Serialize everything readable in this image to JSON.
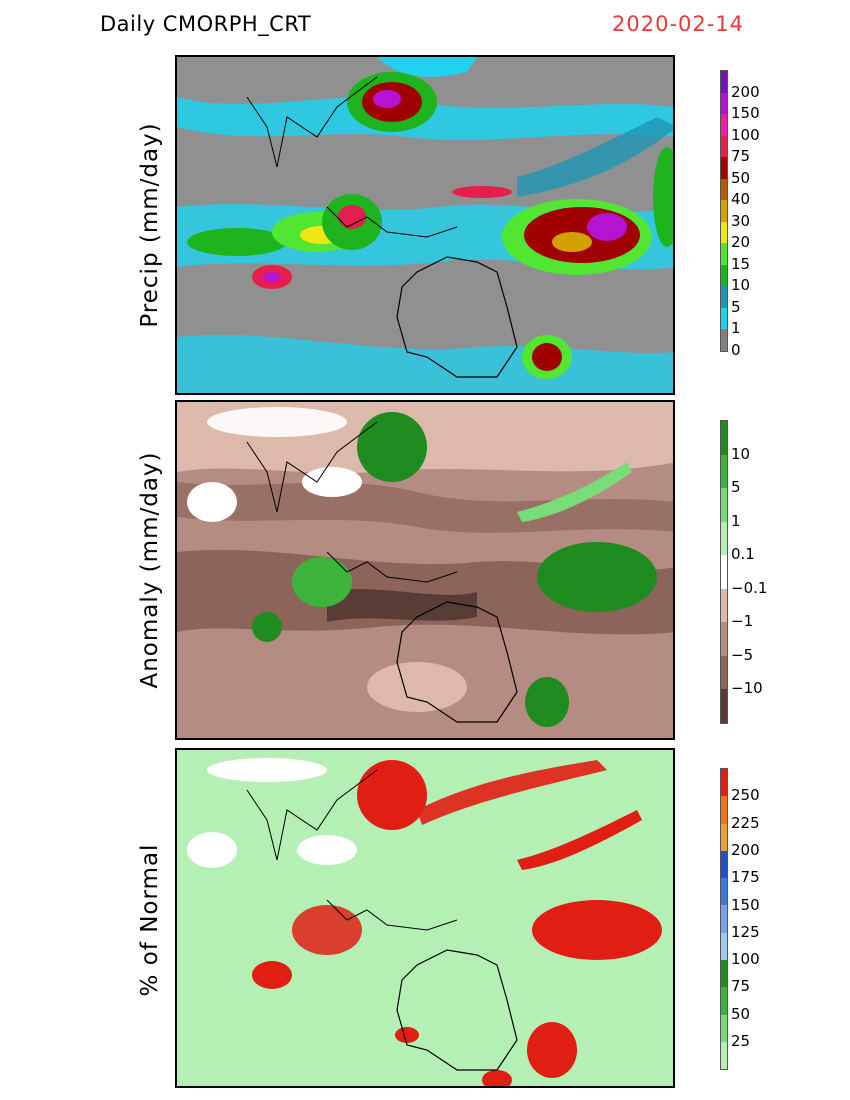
{
  "header": {
    "title": "Daily  CMORPH_CRT",
    "date": "2020-02-14",
    "date_color": "#e8393a"
  },
  "chart_data": [
    {
      "type": "heatmap",
      "ylabel": "Precip (mm/day)",
      "legend_ticks": [
        "200",
        "150",
        "100",
        "75",
        "50",
        "40",
        "30",
        "20",
        "15",
        "10",
        "5",
        "1",
        "0"
      ],
      "colorbar_colors": [
        "#7814b4",
        "#b414d2",
        "#e61eaa",
        "#e61e4b",
        "#a00000",
        "#b45a00",
        "#d2a000",
        "#f0e614",
        "#50e632",
        "#1eb41e",
        "#1e96b4",
        "#1ed2f0",
        "#808080"
      ]
    },
    {
      "type": "heatmap",
      "ylabel": "Anomaly (mm/day)",
      "legend_ticks": [
        "10",
        "5",
        "1",
        "0.1",
        "−0.1",
        "−1",
        "−5",
        "−10"
      ],
      "colorbar_colors": [
        "#1e8c1e",
        "#3cb43c",
        "#78dc78",
        "#b4f0b4",
        "#ffffff",
        "#dcb9aa",
        "#b48c82",
        "#8c6459",
        "#5a3c37"
      ]
    },
    {
      "type": "heatmap",
      "ylabel": "% of Normal",
      "legend_ticks": [
        "250",
        "225",
        "200",
        "175",
        "150",
        "125",
        "100",
        "75",
        "50",
        "25"
      ],
      "colorbar_colors": [
        "#e11e14",
        "#f07814",
        "#f0a032",
        "#1e50c8",
        "#3c78dc",
        "#78a0f0",
        "#a0c8f0",
        "#1e8c1e",
        "#3cb43c",
        "#78dc78",
        "#b4f0b4"
      ]
    }
  ]
}
